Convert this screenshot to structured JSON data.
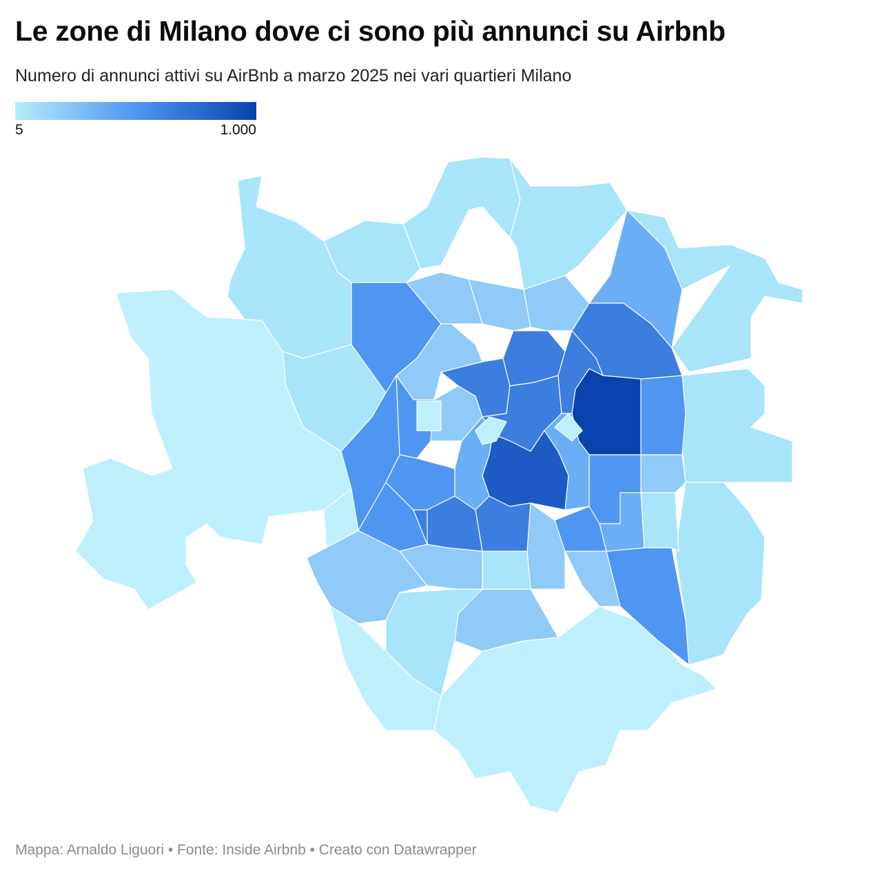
{
  "title": "Le zone di Milano dove ci sono più annunci su Airbnb",
  "subtitle": "Numero di annunci attivi su AirBnb a marzo 2025 nei vari quartieri Milano",
  "legend": {
    "min_label": "5",
    "max_label": "1.000",
    "min_value": 5,
    "max_value": 1000,
    "color_low": "#b7ecfb",
    "color_mid": "#4f96f2",
    "color_high": "#0a43ad"
  },
  "footer": "Mappa: Arnaldo Liguori • Fonte: Inside Airbnb • Creato con Datawrapper",
  "map": {
    "type": "choropleth",
    "district_border": "#ffffff",
    "color_scale": [
      "#bdf0fc",
      "#a8e4fa",
      "#8fcaf8",
      "#6aaef5",
      "#4f96f2",
      "#3c7edf",
      "#1e5ac6",
      "#0a43ad"
    ]
  }
}
